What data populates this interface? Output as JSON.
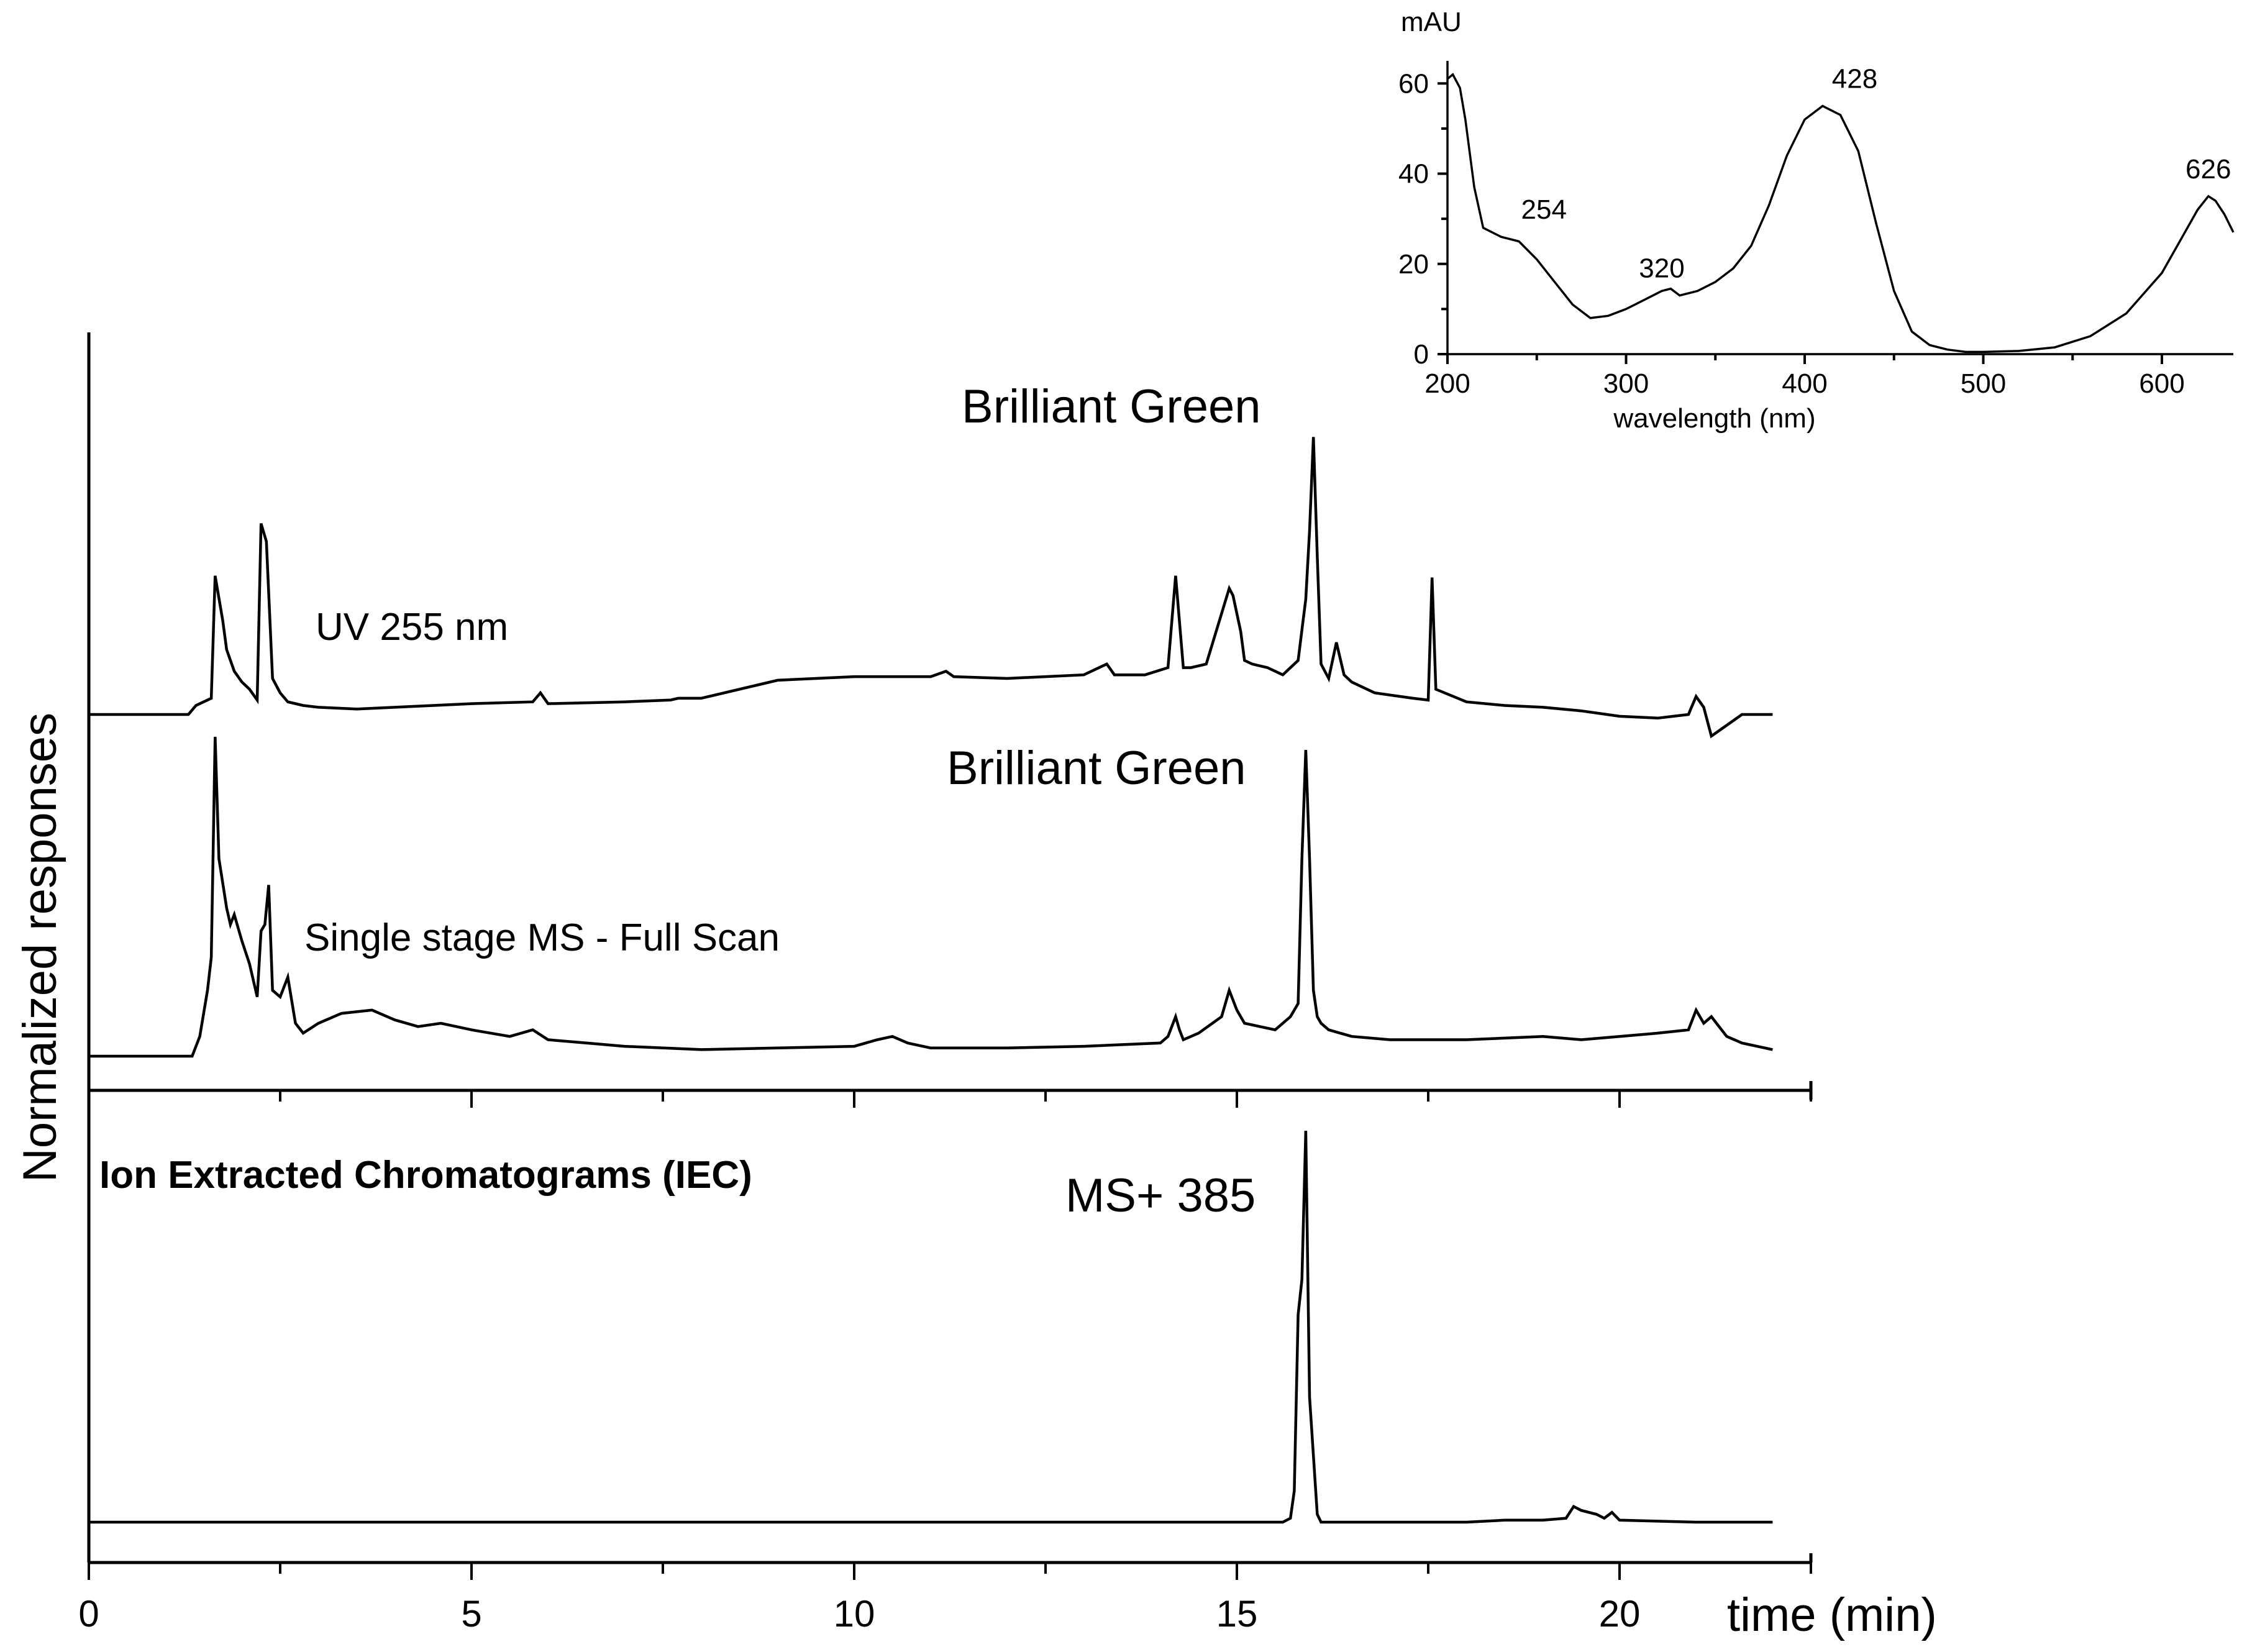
{
  "chart_data": [
    {
      "type": "line",
      "xlabel": "time (min)",
      "ylabel": "Normalized responses",
      "xlim": [
        0,
        22.5
      ],
      "xticks": [
        0,
        5,
        10,
        15,
        20
      ],
      "y_tick_labels_shown": false,
      "series": [
        {
          "name": "UV 255 nm",
          "annotation": "Brilliant Green",
          "x": [
            0,
            1.3,
            1.4,
            1.5,
            1.6,
            1.65,
            1.75,
            1.8,
            1.9,
            2.0,
            2.1,
            2.2,
            2.25,
            2.32,
            2.4,
            2.5,
            2.6,
            2.8,
            3.0,
            3.5,
            4.0,
            5.0,
            5.8,
            5.9,
            6.0,
            7.0,
            7.6,
            7.7,
            8.0,
            9.0,
            9.5,
            10.0,
            11.0,
            11.2,
            11.3,
            12.0,
            13.0,
            13.3,
            13.4,
            13.8,
            14.1,
            14.2,
            14.3,
            14.4,
            14.6,
            14.9,
            14.95,
            15.05,
            15.1,
            15.2,
            15.4,
            15.6,
            15.8,
            15.9,
            15.95,
            16.0,
            16.05,
            16.1,
            16.2,
            16.3,
            16.4,
            16.5,
            16.8,
            17.3,
            17.5,
            17.55,
            17.6,
            18.0,
            18.5,
            19.0,
            19.5,
            20.0,
            20.5,
            20.9,
            21.0,
            21.1,
            21.2,
            21.4,
            21.6,
            22.0
          ],
          "y": [
            0,
            0,
            2.5,
            3.5,
            4.5,
            38.5,
            26,
            18,
            12,
            9,
            7,
            4,
            53,
            48,
            10,
            6,
            3.5,
            2.5,
            2,
            1.5,
            2,
            3,
            3.5,
            6,
            3,
            3.5,
            4,
            4.5,
            4.5,
            9.5,
            10,
            10.5,
            10.5,
            12,
            10.5,
            10,
            11,
            14,
            11,
            11,
            13,
            38.5,
            13,
            13,
            14,
            35,
            33,
            23,
            15,
            14,
            13,
            11,
            15,
            32,
            51,
            77,
            44,
            14,
            10,
            20,
            11,
            9,
            6,
            4.5,
            4,
            38,
            7,
            3.5,
            2.5,
            2,
            1,
            -0.5,
            -1,
            0,
            5,
            2,
            -6,
            -3,
            0,
            0
          ]
        },
        {
          "name": "Single stage MS - Full Scan",
          "annotation": "Brilliant Green",
          "x": [
            0,
            1.35,
            1.45,
            1.55,
            1.6,
            1.65,
            1.7,
            1.8,
            1.85,
            1.9,
            2.0,
            2.1,
            2.2,
            2.25,
            2.3,
            2.35,
            2.4,
            2.5,
            2.6,
            2.7,
            2.8,
            3.0,
            3.3,
            3.7,
            4.0,
            4.3,
            4.6,
            5.0,
            5.5,
            5.8,
            6.0,
            6.5,
            7.0,
            8.0,
            9.0,
            10.0,
            10.3,
            10.5,
            10.7,
            11.0,
            12.0,
            13.0,
            14.0,
            14.1,
            14.2,
            14.25,
            14.3,
            14.5,
            14.8,
            14.9,
            15.0,
            15.1,
            15.3,
            15.5,
            15.7,
            15.8,
            15.85,
            15.9,
            15.95,
            16.0,
            16.05,
            16.1,
            16.2,
            16.5,
            17.0,
            18.0,
            19.0,
            19.5,
            20.0,
            20.5,
            20.9,
            21.0,
            21.1,
            21.2,
            21.4,
            21.6,
            22.0
          ],
          "y": [
            0,
            0,
            6,
            20,
            30,
            97,
            60,
            45,
            40,
            43,
            35,
            28,
            18,
            38,
            40,
            52,
            20,
            18,
            24,
            10,
            7,
            10,
            13,
            14,
            11,
            9,
            10,
            8,
            6,
            8,
            5,
            4,
            3,
            2,
            2.5,
            3,
            5,
            6,
            4,
            2.5,
            2.5,
            3,
            4,
            6,
            12,
            8,
            5,
            7,
            12,
            20,
            14,
            10,
            9,
            8,
            12,
            16,
            60,
            93,
            60,
            20,
            12,
            10,
            8,
            6,
            5,
            5,
            6,
            5,
            6,
            7,
            8,
            14,
            10,
            12,
            6,
            4,
            2
          ]
        },
        {
          "name": "MS+ 385",
          "x": [
            0,
            15.0,
            15.6,
            15.7,
            15.75,
            15.8,
            15.85,
            15.9,
            15.95,
            16.0,
            16.05,
            16.1,
            16.5,
            17.0,
            18.0,
            18.5,
            19.0,
            19.3,
            19.4,
            19.5,
            19.7,
            19.8,
            19.9,
            20.0,
            21.0,
            22.0
          ],
          "y": [
            0,
            0,
            0,
            1,
            8,
            53,
            62,
            100,
            32,
            17,
            2,
            0,
            0,
            0,
            0,
            0.5,
            0.5,
            1,
            4,
            3,
            2,
            1,
            2.5,
            0.5,
            0,
            0
          ]
        }
      ],
      "annotations": [
        "UV 255 nm",
        "Brilliant Green",
        "Single stage MS - Full Scan",
        "Brilliant Green",
        "Ion Extracted Chromatograms (IEC)",
        "MS+ 385"
      ]
    },
    {
      "type": "line",
      "ylabel": "mAU",
      "xlabel": "wavelength (nm)",
      "xlim": [
        200,
        640
      ],
      "ylim": [
        0,
        65
      ],
      "xticks": [
        200,
        300,
        400,
        500,
        600
      ],
      "yticks": [
        0,
        20,
        40,
        60
      ],
      "series": [
        {
          "x": [
            200,
            203,
            207,
            210,
            215,
            220,
            230,
            240,
            250,
            260,
            270,
            280,
            290,
            300,
            310,
            320,
            325,
            330,
            340,
            350,
            360,
            370,
            380,
            390,
            400,
            410,
            420,
            430,
            440,
            450,
            460,
            470,
            480,
            490,
            500,
            520,
            540,
            560,
            580,
            600,
            610,
            620,
            626,
            630,
            635,
            640
          ],
          "y": [
            61,
            62,
            59,
            52,
            37,
            28,
            26,
            25,
            21,
            16,
            11,
            8,
            8.5,
            10,
            12,
            14,
            14.5,
            13,
            14,
            16,
            19,
            24,
            33,
            44,
            52,
            55,
            53,
            45,
            29,
            14,
            5,
            2,
            1,
            0.5,
            0.5,
            0.7,
            1.5,
            4,
            9,
            18,
            25,
            32,
            35,
            34,
            31,
            27
          ]
        }
      ],
      "peak_labels": [
        {
          "x": 254,
          "y": 30,
          "text": "254"
        },
        {
          "x": 320,
          "y": 17,
          "text": "320"
        },
        {
          "x": 428,
          "y": 59,
          "text": "428"
        },
        {
          "x": 626,
          "y": 39,
          "text": "626"
        }
      ]
    }
  ]
}
